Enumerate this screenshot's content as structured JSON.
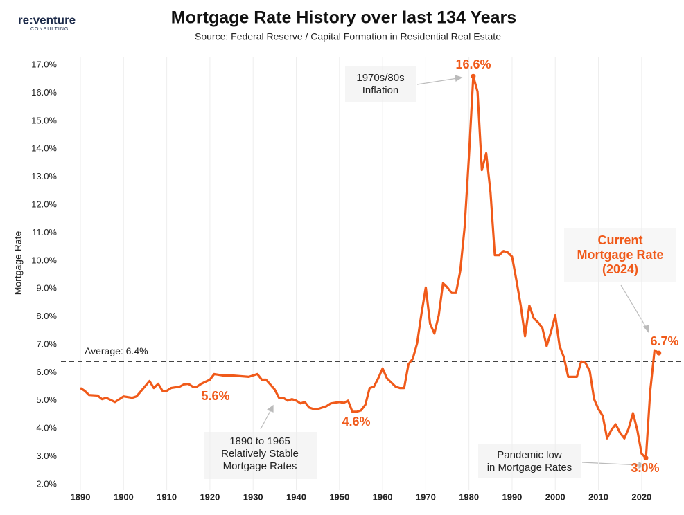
{
  "logo": {
    "brand": "re:venture",
    "sub": "CONSULTING"
  },
  "chart_data": {
    "type": "line",
    "title": "Mortgage Rate History over last 134 Years",
    "subtitle": "Source: Federal Reserve / Capital Formation in Residential Real Estate",
    "y_label": "Mortgage Rate",
    "xlim": [
      1885.5,
      2029.5
    ],
    "ylim": [
      1.8,
      17.3
    ],
    "xticks": [
      1890,
      1900,
      1910,
      1920,
      1930,
      1940,
      1950,
      1960,
      1970,
      1980,
      1990,
      2000,
      2010,
      2020
    ],
    "yticks": [
      {
        "value": 2,
        "label": "2.0%"
      },
      {
        "value": 3,
        "label": "3.0%"
      },
      {
        "value": 4,
        "label": "4.0%"
      },
      {
        "value": 5,
        "label": "5.0%"
      },
      {
        "value": 6,
        "label": "6.0%"
      },
      {
        "value": 7,
        "label": "7.0%"
      },
      {
        "value": 8,
        "label": "8.0%"
      },
      {
        "value": 9,
        "label": "9.0%"
      },
      {
        "value": 10,
        "label": "10.0%"
      },
      {
        "value": 11,
        "label": "11.0%"
      },
      {
        "value": 12,
        "label": "12.0%"
      },
      {
        "value": 13,
        "label": "13.0%"
      },
      {
        "value": 14,
        "label": "14.0%"
      },
      {
        "value": 15,
        "label": "15.0%"
      },
      {
        "value": 16,
        "label": "16.0%"
      },
      {
        "value": 17,
        "label": "17.0%"
      }
    ],
    "grid": true,
    "average": {
      "value": 6.4,
      "label": "Average: 6.4%"
    },
    "series": [
      {
        "name": "Mortgage Rate",
        "color": "#f05a1a",
        "x": [
          1890,
          1891,
          1892,
          1894,
          1895,
          1896,
          1898,
          1900,
          1902,
          1903,
          1906,
          1907,
          1908,
          1909,
          1910,
          1911,
          1913,
          1914,
          1915,
          1916,
          1917,
          1918,
          1920,
          1921,
          1923,
          1925,
          1929,
          1931,
          1932,
          1933,
          1935,
          1936,
          1937,
          1938,
          1939,
          1940,
          1941,
          1942,
          1943,
          1944,
          1945,
          1946,
          1947,
          1948,
          1950,
          1951,
          1952,
          1953,
          1954,
          1955,
          1956,
          1957,
          1958,
          1959,
          1960,
          1961,
          1962,
          1963,
          1964,
          1965,
          1966,
          1967,
          1968,
          1969,
          1970,
          1971,
          1972,
          1973,
          1974,
          1975,
          1976,
          1977,
          1978,
          1979,
          1980,
          1981,
          1982,
          1983,
          1984,
          1985,
          1986,
          1987,
          1988,
          1989,
          1990,
          1991,
          1992,
          1993,
          1994,
          1995,
          1996,
          1997,
          1998,
          1999,
          2000,
          2001,
          2002,
          2003,
          2004,
          2005,
          2006,
          2007,
          2008,
          2009,
          2010,
          2011,
          2012,
          2013,
          2014,
          2015,
          2016,
          2017,
          2018,
          2019,
          2020,
          2021,
          2022,
          2023,
          2024
        ],
        "values": [
          5.45,
          5.35,
          5.2,
          5.18,
          5.05,
          5.1,
          4.95,
          5.15,
          5.1,
          5.15,
          5.7,
          5.45,
          5.6,
          5.35,
          5.35,
          5.45,
          5.5,
          5.58,
          5.6,
          5.5,
          5.5,
          5.6,
          5.75,
          5.95,
          5.9,
          5.9,
          5.85,
          5.95,
          5.75,
          5.75,
          5.4,
          5.1,
          5.1,
          5.0,
          5.05,
          5.0,
          4.9,
          4.95,
          4.75,
          4.7,
          4.7,
          4.75,
          4.8,
          4.9,
          4.95,
          4.92,
          5.0,
          4.6,
          4.6,
          4.65,
          4.85,
          5.45,
          5.5,
          5.8,
          6.15,
          5.8,
          5.65,
          5.5,
          5.45,
          5.45,
          6.3,
          6.5,
          7.05,
          8.1,
          9.05,
          7.75,
          7.4,
          8.05,
          9.2,
          9.05,
          8.85,
          8.85,
          9.65,
          11.2,
          13.75,
          16.6,
          16.05,
          13.25,
          13.85,
          12.45,
          10.2,
          10.2,
          10.35,
          10.3,
          10.15,
          9.3,
          8.4,
          7.3,
          8.4,
          7.95,
          7.8,
          7.6,
          6.95,
          7.45,
          8.05,
          6.95,
          6.55,
          5.85,
          5.85,
          5.85,
          6.4,
          6.35,
          6.05,
          5.05,
          4.7,
          4.45,
          3.65,
          3.95,
          4.15,
          3.85,
          3.65,
          4.0,
          4.55,
          3.95,
          3.1,
          2.95,
          5.35,
          6.8,
          6.7
        ]
      }
    ],
    "annotations": [
      {
        "text": [
          "16.6%"
        ],
        "style": "highlight"
      },
      {
        "text": [
          "5.6%"
        ],
        "style": "highlight"
      },
      {
        "text": [
          "4.6%"
        ],
        "style": "highlight"
      },
      {
        "text": [
          "6.7%"
        ],
        "style": "highlight"
      },
      {
        "text": [
          "3.0%"
        ],
        "style": "highlight"
      },
      {
        "text": [
          "1970s/80s",
          "Inflation"
        ],
        "style": "note"
      },
      {
        "text": [
          "1890 to 1965",
          "Relatively Stable",
          "Mortgage Rates"
        ],
        "style": "note"
      },
      {
        "text": [
          "Pandemic low",
          "in Mortgage Rates"
        ],
        "style": "note"
      },
      {
        "text": [
          "Current",
          "Mortgage Rate",
          "(2024)"
        ],
        "style": "callout"
      }
    ]
  }
}
